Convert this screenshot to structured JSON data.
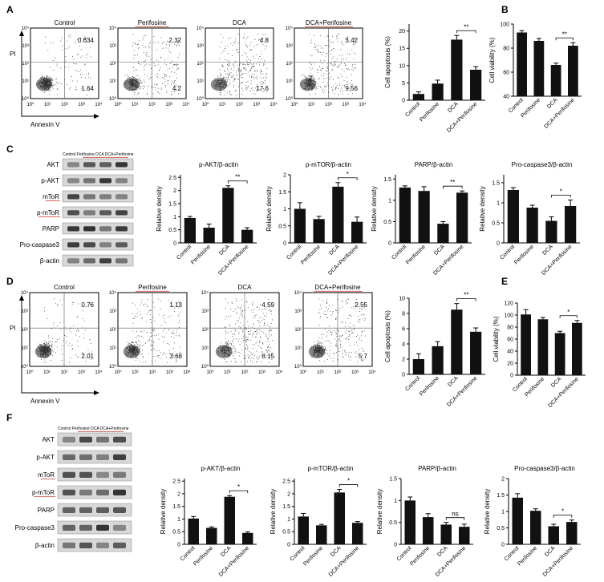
{
  "panel_letters": [
    "A",
    "B",
    "C",
    "D",
    "E",
    "F"
  ],
  "colors": {
    "bar": "#111111",
    "dot": "#333333",
    "band": "#2a2a2a",
    "red_underline": "#c0392b"
  },
  "flow_axes": {
    "ylabel": "PI",
    "xlabel": "Annexin V",
    "ticks": [
      "10⁰",
      "10¹",
      "10²",
      "10³",
      "10⁴"
    ]
  },
  "groups": [
    "Control",
    "Perifosine",
    "DCA",
    "DCA+Perifosine"
  ],
  "flow_A": [
    {
      "title": "Control",
      "ul": "",
      "ur": "0.634",
      "ll": "",
      "lr": "1.64"
    },
    {
      "title": "Perifosine",
      "ul": "",
      "ur": "2.32",
      "ll": "",
      "lr": "4.2"
    },
    {
      "title": "DCA",
      "ul": "",
      "ur": "4.8",
      "ll": "",
      "lr": "17.6"
    },
    {
      "title": "DCA+Perifosine",
      "ul": "",
      "ur": "3.42",
      "ll": "",
      "lr": "9.56"
    }
  ],
  "flow_D": [
    {
      "title": "Control",
      "ur": "0.76",
      "lr": "2.01"
    },
    {
      "title": "Perifosine",
      "ur": "1.13",
      "lr": "3.68"
    },
    {
      "title": "DCA",
      "ur": "4.59",
      "lr": "8.15"
    },
    {
      "title": "DCA+Perifosine",
      "ur": "2.55",
      "lr": "5.7"
    }
  ],
  "wb_C": {
    "header": "Control Perifosine DCA DCA+Perifosine",
    "rows": [
      "AKT",
      "p-AKT",
      "mToR",
      "p-mToR",
      "PARP",
      "Pro-caspase3",
      "β-actin"
    ]
  },
  "wb_F": {
    "header": "Control Perifosine DCA DCA+Perifosine",
    "rows": [
      "AKT",
      "p-AKT",
      "mToR",
      "p-mToR",
      "PARP",
      "Pro-caspase3",
      "β-actin"
    ]
  },
  "chart_data": [
    {
      "id": "A_apop",
      "type": "bar",
      "ylabel": "Cell apoptosis (%)",
      "yticks": [
        0,
        5,
        10,
        15,
        20
      ],
      "ylim": [
        0,
        22
      ],
      "categories": [
        "Control",
        "Perifosine",
        "DCA",
        "DCA+Perifosine"
      ],
      "values": [
        1.8,
        4.8,
        17.5,
        8.8
      ],
      "errors": [
        0.6,
        1.0,
        1.2,
        0.9
      ],
      "sig": {
        "a": 2,
        "b": 3,
        "label": "**"
      }
    },
    {
      "id": "B_via",
      "type": "bar",
      "ylabel": "Cell viability (%)",
      "yticks": [
        40,
        60,
        80,
        100
      ],
      "ylim": [
        40,
        100
      ],
      "categories": [
        "Control",
        "Perifosine",
        "DCA",
        "DCA+Perifosine"
      ],
      "values": [
        93,
        86,
        66,
        82
      ],
      "errors": [
        1.5,
        2,
        1.5,
        2.5
      ],
      "sig": {
        "a": 2,
        "b": 3,
        "label": "**"
      }
    },
    {
      "id": "C_pakt",
      "type": "bar",
      "title": "p-AKT/β-actin",
      "ylabel": "Relative density",
      "yticks": [
        0,
        0.5,
        1.0,
        1.5,
        2.0,
        2.5
      ],
      "ylim": [
        0,
        2.6
      ],
      "categories": [
        "Control",
        "Perifosine",
        "DCA",
        "DCA+Perifosine"
      ],
      "values": [
        0.95,
        0.58,
        2.1,
        0.5
      ],
      "errors": [
        0.06,
        0.14,
        0.08,
        0.08
      ],
      "sig": {
        "a": 2,
        "b": 3,
        "label": "**"
      }
    },
    {
      "id": "C_pmtor",
      "type": "bar",
      "title": "p-mTOR/β-actin",
      "ylabel": "Relative density",
      "yticks": [
        0,
        0.5,
        1.0,
        1.5,
        2.0
      ],
      "ylim": [
        0,
        2.0
      ],
      "categories": [
        "Control",
        "Perifosine",
        "DCA",
        "DCA+Perifosine"
      ],
      "values": [
        1.0,
        0.7,
        1.65,
        0.62
      ],
      "errors": [
        0.18,
        0.08,
        0.12,
        0.14
      ],
      "sig": {
        "a": 2,
        "b": 3,
        "label": "*"
      }
    },
    {
      "id": "C_parp",
      "type": "bar",
      "title": "PARP/β-actin",
      "ylabel": "Relative density",
      "yticks": [
        0,
        0.5,
        1.0,
        1.5
      ],
      "ylim": [
        0,
        1.6
      ],
      "categories": [
        "Control",
        "Perifosine",
        "DCA",
        "DCA+Perifosine"
      ],
      "values": [
        1.3,
        1.22,
        0.45,
        1.18
      ],
      "errors": [
        0.04,
        0.1,
        0.05,
        0.04
      ],
      "sig": {
        "a": 2,
        "b": 3,
        "label": "**"
      }
    },
    {
      "id": "C_procasp",
      "type": "bar",
      "title": "Pro-caspase3/β-actin",
      "ylabel": "Relative density",
      "yticks": [
        0,
        0.5,
        1.0,
        1.5
      ],
      "ylim": [
        0,
        1.7
      ],
      "categories": [
        "Control",
        "Perifosine",
        "DCA",
        "DCA+Perifosine"
      ],
      "values": [
        1.32,
        0.88,
        0.55,
        0.92
      ],
      "errors": [
        0.06,
        0.06,
        0.1,
        0.15
      ],
      "sig": {
        "a": 2,
        "b": 3,
        "label": "*"
      }
    },
    {
      "id": "D_apop",
      "type": "bar",
      "ylabel": "Cell apoptosis (%)",
      "yticks": [
        0,
        2,
        4,
        6,
        8,
        10
      ],
      "ylim": [
        0,
        10
      ],
      "categories": [
        "Control",
        "Perifosine",
        "DCA",
        "DCA+Perifosine"
      ],
      "values": [
        2.0,
        3.7,
        8.5,
        5.6
      ],
      "errors": [
        0.7,
        0.6,
        0.8,
        0.5
      ],
      "sig": {
        "a": 2,
        "b": 3,
        "label": "**"
      }
    },
    {
      "id": "E_via",
      "type": "bar",
      "ylabel": "Cell viability (%)",
      "yticks": [
        0,
        20,
        40,
        60,
        80,
        100,
        120
      ],
      "ylim": [
        0,
        120
      ],
      "categories": [
        "Control",
        "Perifosine",
        "DCA",
        "DCA+Perifosine"
      ],
      "values": [
        101,
        93,
        70,
        87
      ],
      "errors": [
        8,
        3,
        3,
        4
      ],
      "sig": {
        "a": 2,
        "b": 3,
        "label": "*"
      }
    },
    {
      "id": "F_pakt",
      "type": "bar",
      "title": "p-AKT/β-actin",
      "ylabel": "Relative density",
      "yticks": [
        0,
        0.5,
        1.0,
        1.5,
        2.0,
        2.5
      ],
      "ylim": [
        0,
        2.6
      ],
      "categories": [
        "Control",
        "Perifosine",
        "DCA",
        "DCA+Perifosine"
      ],
      "values": [
        1.02,
        0.65,
        1.88,
        0.45
      ],
      "errors": [
        0.08,
        0.04,
        0.05,
        0.04
      ],
      "sig": {
        "a": 2,
        "b": 3,
        "label": "*"
      }
    },
    {
      "id": "F_pmtor",
      "type": "bar",
      "title": "p-mTOR/β-actin",
      "ylabel": "Relative density",
      "yticks": [
        0,
        0.5,
        1.0,
        1.5,
        2.0,
        2.5
      ],
      "ylim": [
        0,
        2.6
      ],
      "categories": [
        "Control",
        "Perifosine",
        "DCA",
        "DCA+Perifosine"
      ],
      "values": [
        1.1,
        0.75,
        2.05,
        0.85
      ],
      "errors": [
        0.12,
        0.04,
        0.12,
        0.05
      ],
      "sig": {
        "a": 2,
        "b": 3,
        "label": "*"
      }
    },
    {
      "id": "F_parp",
      "type": "bar",
      "title": "PARP/β-actin",
      "ylabel": "Relative density",
      "yticks": [
        0,
        0.5,
        1.0,
        1.5
      ],
      "ylim": [
        0,
        1.5
      ],
      "categories": [
        "Control",
        "Perifosine",
        "DCA",
        "DCA+Perifosine"
      ],
      "values": [
        1.0,
        0.62,
        0.45,
        0.4
      ],
      "errors": [
        0.08,
        0.08,
        0.05,
        0.06
      ],
      "sig": {
        "a": 2,
        "b": 3,
        "label": "ns"
      }
    },
    {
      "id": "F_procasp",
      "type": "bar",
      "title": "Pro-caspase3/β-actin",
      "ylabel": "Relative density",
      "yticks": [
        0,
        0.5,
        1.0,
        1.5,
        2.0
      ],
      "ylim": [
        0,
        2.0
      ],
      "categories": [
        "Control",
        "Perifosine",
        "DCA",
        "DCA+Perifosine"
      ],
      "values": [
        1.42,
        1.02,
        0.55,
        0.68
      ],
      "errors": [
        0.12,
        0.06,
        0.06,
        0.06
      ],
      "sig": {
        "a": 2,
        "b": 3,
        "label": "*"
      }
    }
  ]
}
